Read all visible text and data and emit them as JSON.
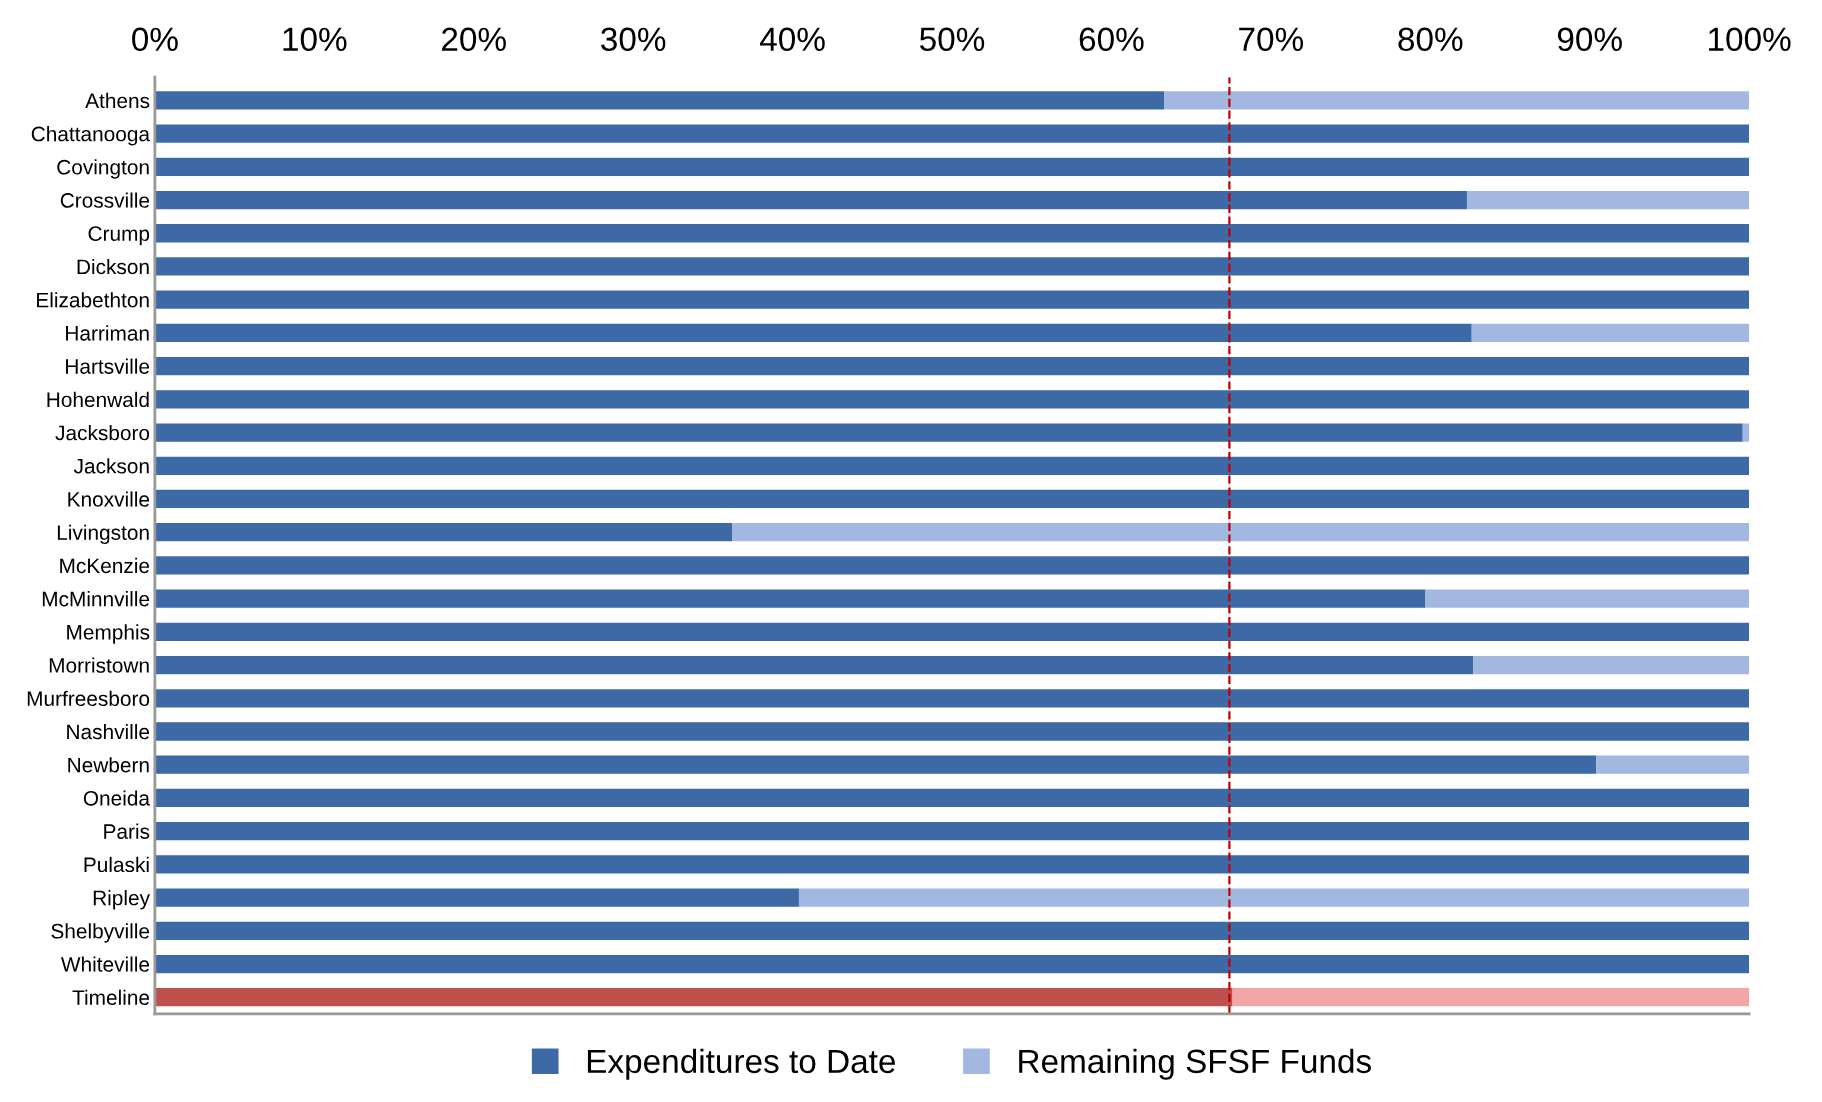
{
  "chart_data": {
    "type": "bar",
    "orientation": "horizontal",
    "stacked": true,
    "categories": [
      "Athens",
      "Chattanooga",
      "Covington",
      "Crossville",
      "Crump",
      "Dickson",
      "Elizabethton",
      "Harriman",
      "Hartsville",
      "Hohenwald",
      "Jacksboro",
      "Jackson",
      "Knoxville",
      "Livingston",
      "McKenzie",
      "McMinnville",
      "Memphis",
      "Morristown",
      "Murfreesboro",
      "Nashville",
      "Newbern",
      "Oneida",
      "Paris",
      "Pulaski",
      "Ripley",
      "Shelbyville",
      "Whiteville",
      "Timeline"
    ],
    "series": [
      {
        "name": "Expenditures to Date",
        "color": "#3d6aa6",
        "colors": [
          "#3d6aa6",
          "#3d6aa6",
          "#3d6aa6",
          "#3d6aa6",
          "#3d6aa6",
          "#3d6aa6",
          "#3d6aa6",
          "#3d6aa6",
          "#3d6aa6",
          "#3d6aa6",
          "#3d6aa6",
          "#3d6aa6",
          "#3d6aa6",
          "#3d6aa6",
          "#3d6aa6",
          "#3d6aa6",
          "#3d6aa6",
          "#3d6aa6",
          "#3d6aa6",
          "#3d6aa6",
          "#3d6aa6",
          "#3d6aa6",
          "#3d6aa6",
          "#3d6aa6",
          "#3d6aa6",
          "#3d6aa6",
          "#3d6aa6",
          "#c0504d"
        ],
        "values": [
          63.3,
          100,
          100,
          82.3,
          100,
          100,
          100,
          82.6,
          100,
          100,
          99.6,
          100,
          100,
          36.2,
          100,
          79.7,
          100,
          82.7,
          100,
          100,
          90.4,
          100,
          100,
          100,
          40.4,
          100,
          100,
          67.6
        ]
      },
      {
        "name": "Remaining SFSF Funds",
        "color": "#a3b8e0",
        "colors": [
          "#a3b8e0",
          "#a3b8e0",
          "#a3b8e0",
          "#a3b8e0",
          "#a3b8e0",
          "#a3b8e0",
          "#a3b8e0",
          "#a3b8e0",
          "#a3b8e0",
          "#a3b8e0",
          "#a3b8e0",
          "#a3b8e0",
          "#a3b8e0",
          "#a3b8e0",
          "#a3b8e0",
          "#a3b8e0",
          "#a3b8e0",
          "#a3b8e0",
          "#a3b8e0",
          "#a3b8e0",
          "#a3b8e0",
          "#a3b8e0",
          "#a3b8e0",
          "#a3b8e0",
          "#a3b8e0",
          "#a3b8e0",
          "#a3b8e0",
          "#f2a7a6"
        ],
        "values": [
          36.7,
          0,
          0,
          17.7,
          0,
          0,
          0,
          17.4,
          0,
          0,
          0.4,
          0,
          0,
          63.8,
          0,
          20.3,
          0,
          17.3,
          0,
          0,
          9.6,
          0,
          0,
          0,
          59.6,
          0,
          0,
          32.4
        ]
      }
    ],
    "xlim": [
      0,
      100
    ],
    "xticks": [
      {
        "value": 0,
        "label": "0%"
      },
      {
        "value": 10,
        "label": "10%"
      },
      {
        "value": 20,
        "label": "20%"
      },
      {
        "value": 30,
        "label": "30%"
      },
      {
        "value": 40,
        "label": "40%"
      },
      {
        "value": 50,
        "label": "50%"
      },
      {
        "value": 60,
        "label": "60%"
      },
      {
        "value": 70,
        "label": "70%"
      },
      {
        "value": 80,
        "label": "80%"
      },
      {
        "value": 90,
        "label": "90%"
      },
      {
        "value": 100,
        "label": "100%"
      }
    ],
    "ref_lines": [
      {
        "axis": "x",
        "value": 67.4,
        "label": null,
        "color": "#c00000",
        "line_style": "dashed"
      }
    ],
    "grid": false,
    "legend": "bottom"
  }
}
